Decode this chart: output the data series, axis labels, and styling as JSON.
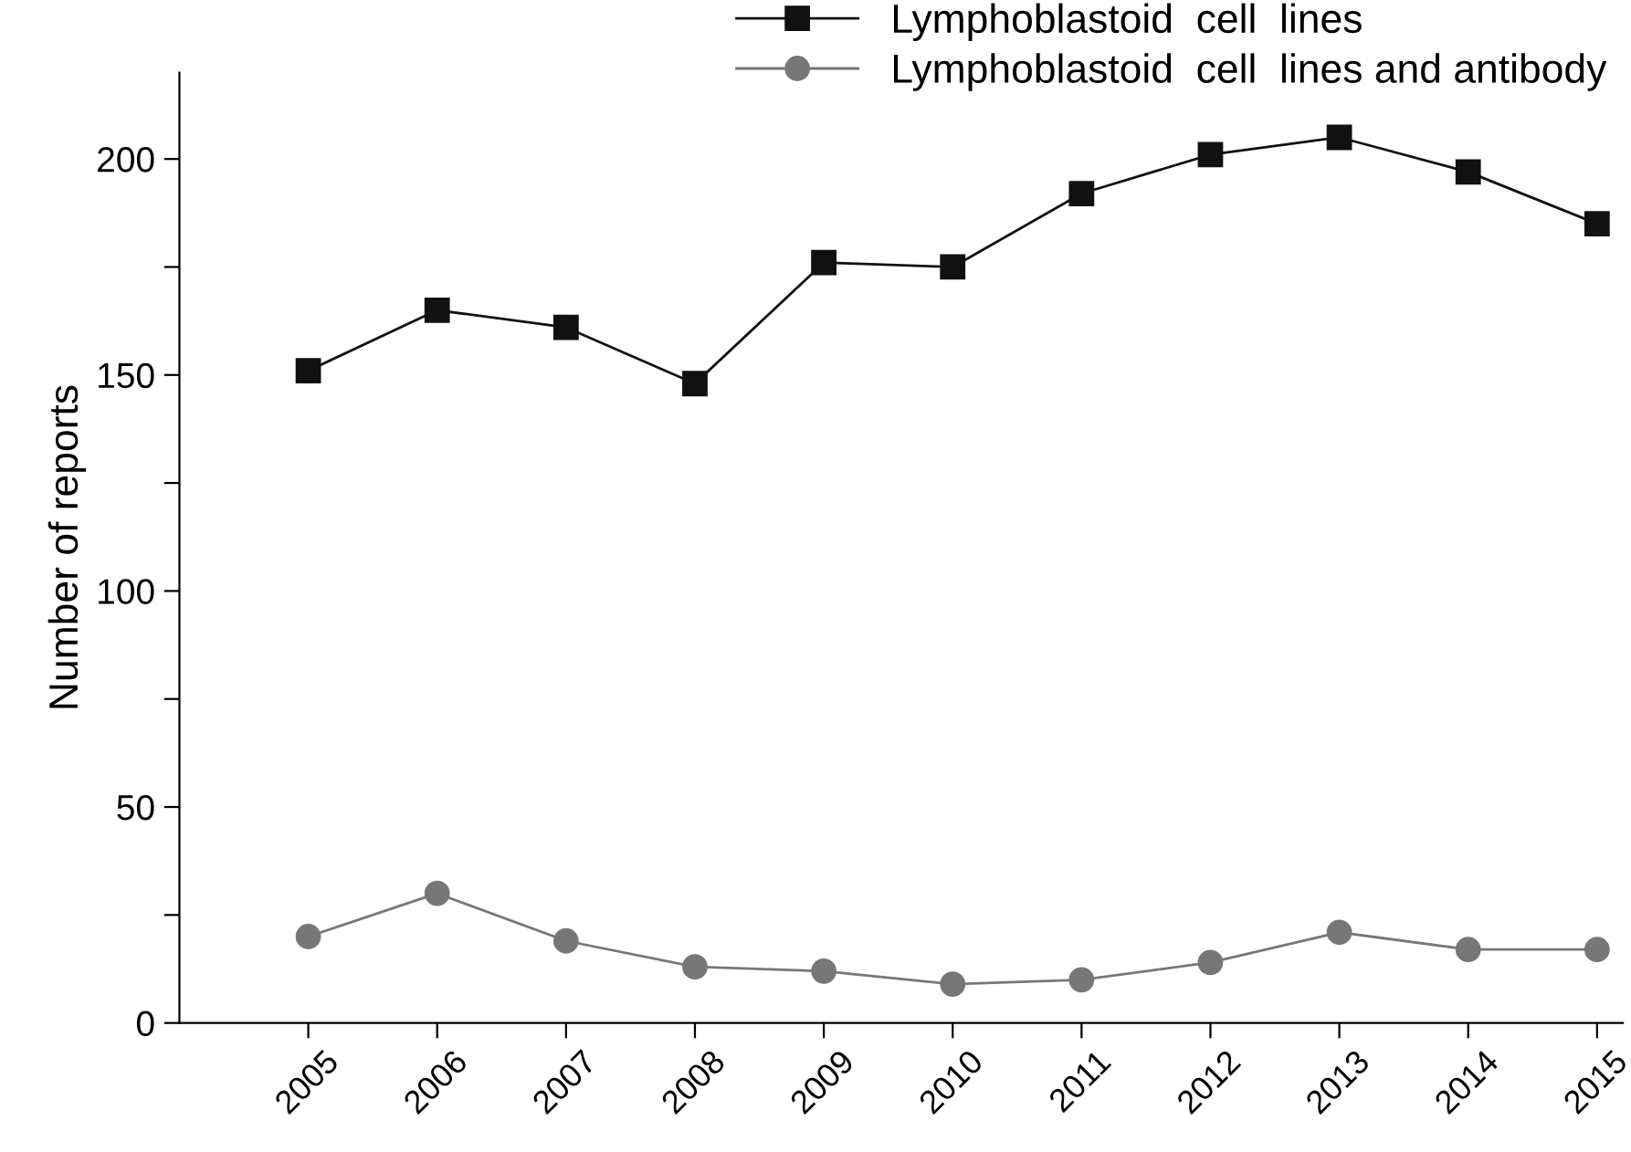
{
  "chart_data": {
    "type": "line",
    "ylabel": "Number of reports",
    "categories": [
      "2005",
      "2006",
      "2007",
      "2008",
      "2009",
      "2010",
      "2011",
      "2012",
      "2013",
      "2014",
      "2015"
    ],
    "series": [
      {
        "name": "Lymphoblastoid  cell  lines",
        "color": "#111111",
        "marker": "square",
        "values": [
          151,
          165,
          161,
          148,
          176,
          175,
          192,
          201,
          205,
          197,
          185
        ]
      },
      {
        "name": "Lymphoblastoid  cell  lines and antibody",
        "color": "#777777",
        "marker": "circle",
        "values": [
          20,
          30,
          19,
          13,
          12,
          9,
          10,
          14,
          21,
          17,
          17
        ]
      }
    ],
    "ylim": [
      0,
      220
    ],
    "yticks": [
      0,
      {
        "value": 25,
        "label": null
      },
      50,
      {
        "value": 75,
        "label": null
      },
      100,
      {
        "value": 125,
        "label": null
      },
      150,
      {
        "value": 175,
        "label": null
      },
      200
    ],
    "grid": false,
    "legend": "top right",
    "line_style": "solid"
  }
}
